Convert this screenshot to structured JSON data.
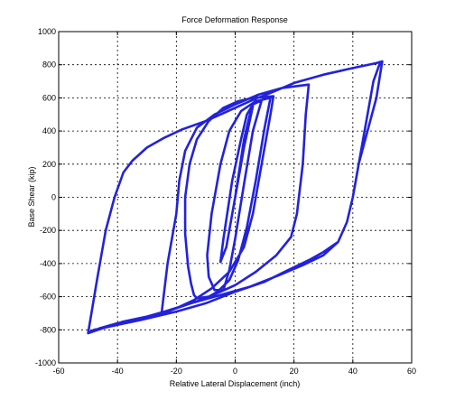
{
  "chart_data": {
    "type": "line",
    "title": "Force Deformation Response",
    "xlabel": "Relative Lateral Displacement (inch)",
    "ylabel": "Base Shear (kip)",
    "xlim": [
      -60,
      60
    ],
    "ylim": [
      -1000,
      1000
    ],
    "xticks": [
      -60,
      -40,
      -20,
      0,
      20,
      40,
      60
    ],
    "yticks": [
      -1000,
      -800,
      -600,
      -400,
      -200,
      0,
      200,
      400,
      600,
      800,
      1000
    ],
    "xtick_labels": [
      "-60",
      "-40",
      "-20",
      "0",
      "20",
      "40",
      "60"
    ],
    "ytick_labels": [
      "-1000",
      "-800",
      "-600",
      "-400",
      "-200",
      "0",
      "200",
      "400",
      "600",
      "800",
      "1000"
    ],
    "grid": true,
    "legend": "none",
    "line_color": "#2222dd",
    "series": [
      {
        "points": [
          [
            0,
            0
          ],
          [
            3,
            350
          ],
          [
            5,
            500
          ],
          [
            6,
            550
          ],
          [
            3,
            300
          ],
          [
            0,
            0
          ],
          [
            -3,
            -300
          ],
          [
            -5,
            -390
          ],
          [
            -4,
            -250
          ],
          [
            -1,
            100
          ],
          [
            2,
            350
          ],
          [
            4,
            500
          ],
          [
            6,
            560
          ],
          [
            9,
            585
          ],
          [
            6,
            400
          ],
          [
            3,
            80
          ],
          [
            0,
            -250
          ],
          [
            -2,
            -440
          ],
          [
            -4,
            -560
          ],
          [
            -7,
            -560
          ],
          [
            -9,
            -480
          ],
          [
            -9.5,
            -350
          ],
          [
            -8,
            -100
          ],
          [
            -5,
            200
          ],
          [
            -2,
            400
          ],
          [
            2,
            520
          ],
          [
            7,
            580
          ],
          [
            12,
            600
          ],
          [
            10,
            420
          ],
          [
            7,
            100
          ],
          [
            4,
            -180
          ],
          [
            1,
            -380
          ],
          [
            -2,
            -500
          ],
          [
            -6,
            -570
          ],
          [
            -9,
            -600
          ],
          [
            -13,
            -610
          ],
          [
            -14,
            -590
          ],
          [
            -15,
            -520
          ],
          [
            -16,
            -420
          ],
          [
            -17,
            -220
          ],
          [
            -17,
            0
          ],
          [
            -15.5,
            200
          ],
          [
            -13,
            350
          ],
          [
            -9,
            460
          ],
          [
            -4,
            540
          ],
          [
            1,
            580
          ],
          [
            6,
            600
          ],
          [
            13,
            610
          ],
          [
            12,
            500
          ],
          [
            9,
            200
          ],
          [
            6,
            -100
          ],
          [
            3,
            -300
          ],
          [
            -2,
            -450
          ],
          [
            -8,
            -550
          ],
          [
            -14,
            -620
          ],
          [
            -20,
            -670
          ],
          [
            -25,
            -700
          ],
          [
            -23,
            -400
          ],
          [
            -20,
            -100
          ],
          [
            -19,
            100
          ],
          [
            -17,
            280
          ],
          [
            -13,
            420
          ],
          [
            -7,
            500
          ],
          [
            0,
            560
          ],
          [
            8,
            620
          ],
          [
            16,
            660
          ],
          [
            25,
            680
          ],
          [
            24,
            500
          ],
          [
            23,
            200
          ],
          [
            21,
            -100
          ],
          [
            19,
            -240
          ],
          [
            14,
            -350
          ],
          [
            7,
            -450
          ],
          [
            0,
            -530
          ],
          [
            -10,
            -610
          ],
          [
            -20,
            -670
          ],
          [
            -26,
            -710
          ],
          [
            -32,
            -730
          ],
          [
            -40,
            -760
          ],
          [
            -46,
            -790
          ],
          [
            -50,
            -820
          ],
          [
            -47,
            -500
          ],
          [
            -44,
            -200
          ],
          [
            -41,
            0
          ],
          [
            -38,
            150
          ],
          [
            -35,
            220
          ],
          [
            -30,
            300
          ],
          [
            -24,
            360
          ],
          [
            -18,
            410
          ],
          [
            -10,
            460
          ],
          [
            -5,
            500
          ],
          [
            0,
            540
          ],
          [
            5,
            580
          ],
          [
            12,
            630
          ],
          [
            20,
            690
          ],
          [
            30,
            740
          ],
          [
            40,
            780
          ],
          [
            48,
            810
          ],
          [
            50,
            820
          ],
          [
            48,
            600
          ],
          [
            45,
            400
          ],
          [
            42,
            200
          ],
          [
            40,
            0
          ],
          [
            38,
            -150
          ],
          [
            35,
            -270
          ],
          [
            30,
            -350
          ],
          [
            23,
            -410
          ],
          [
            15,
            -470
          ],
          [
            5,
            -540
          ],
          [
            -5,
            -590
          ],
          [
            -15,
            -640
          ],
          [
            -24,
            -690
          ],
          [
            -30,
            -720
          ],
          [
            -38,
            -750
          ],
          [
            -45,
            -790
          ],
          [
            -50,
            -820
          ],
          [
            -48,
            -800
          ],
          [
            -32,
            -740
          ],
          [
            -20,
            -690
          ],
          [
            -10,
            -640
          ],
          [
            0,
            -570
          ],
          [
            10,
            -510
          ],
          [
            18,
            -440
          ],
          [
            25,
            -380
          ],
          [
            30,
            -330
          ],
          [
            35,
            -270
          ],
          [
            38,
            -150
          ],
          [
            40,
            0
          ],
          [
            41,
            100
          ],
          [
            43,
            300
          ],
          [
            45,
            500
          ],
          [
            47,
            700
          ],
          [
            49,
            800
          ],
          [
            50,
            815
          ]
        ]
      }
    ]
  }
}
